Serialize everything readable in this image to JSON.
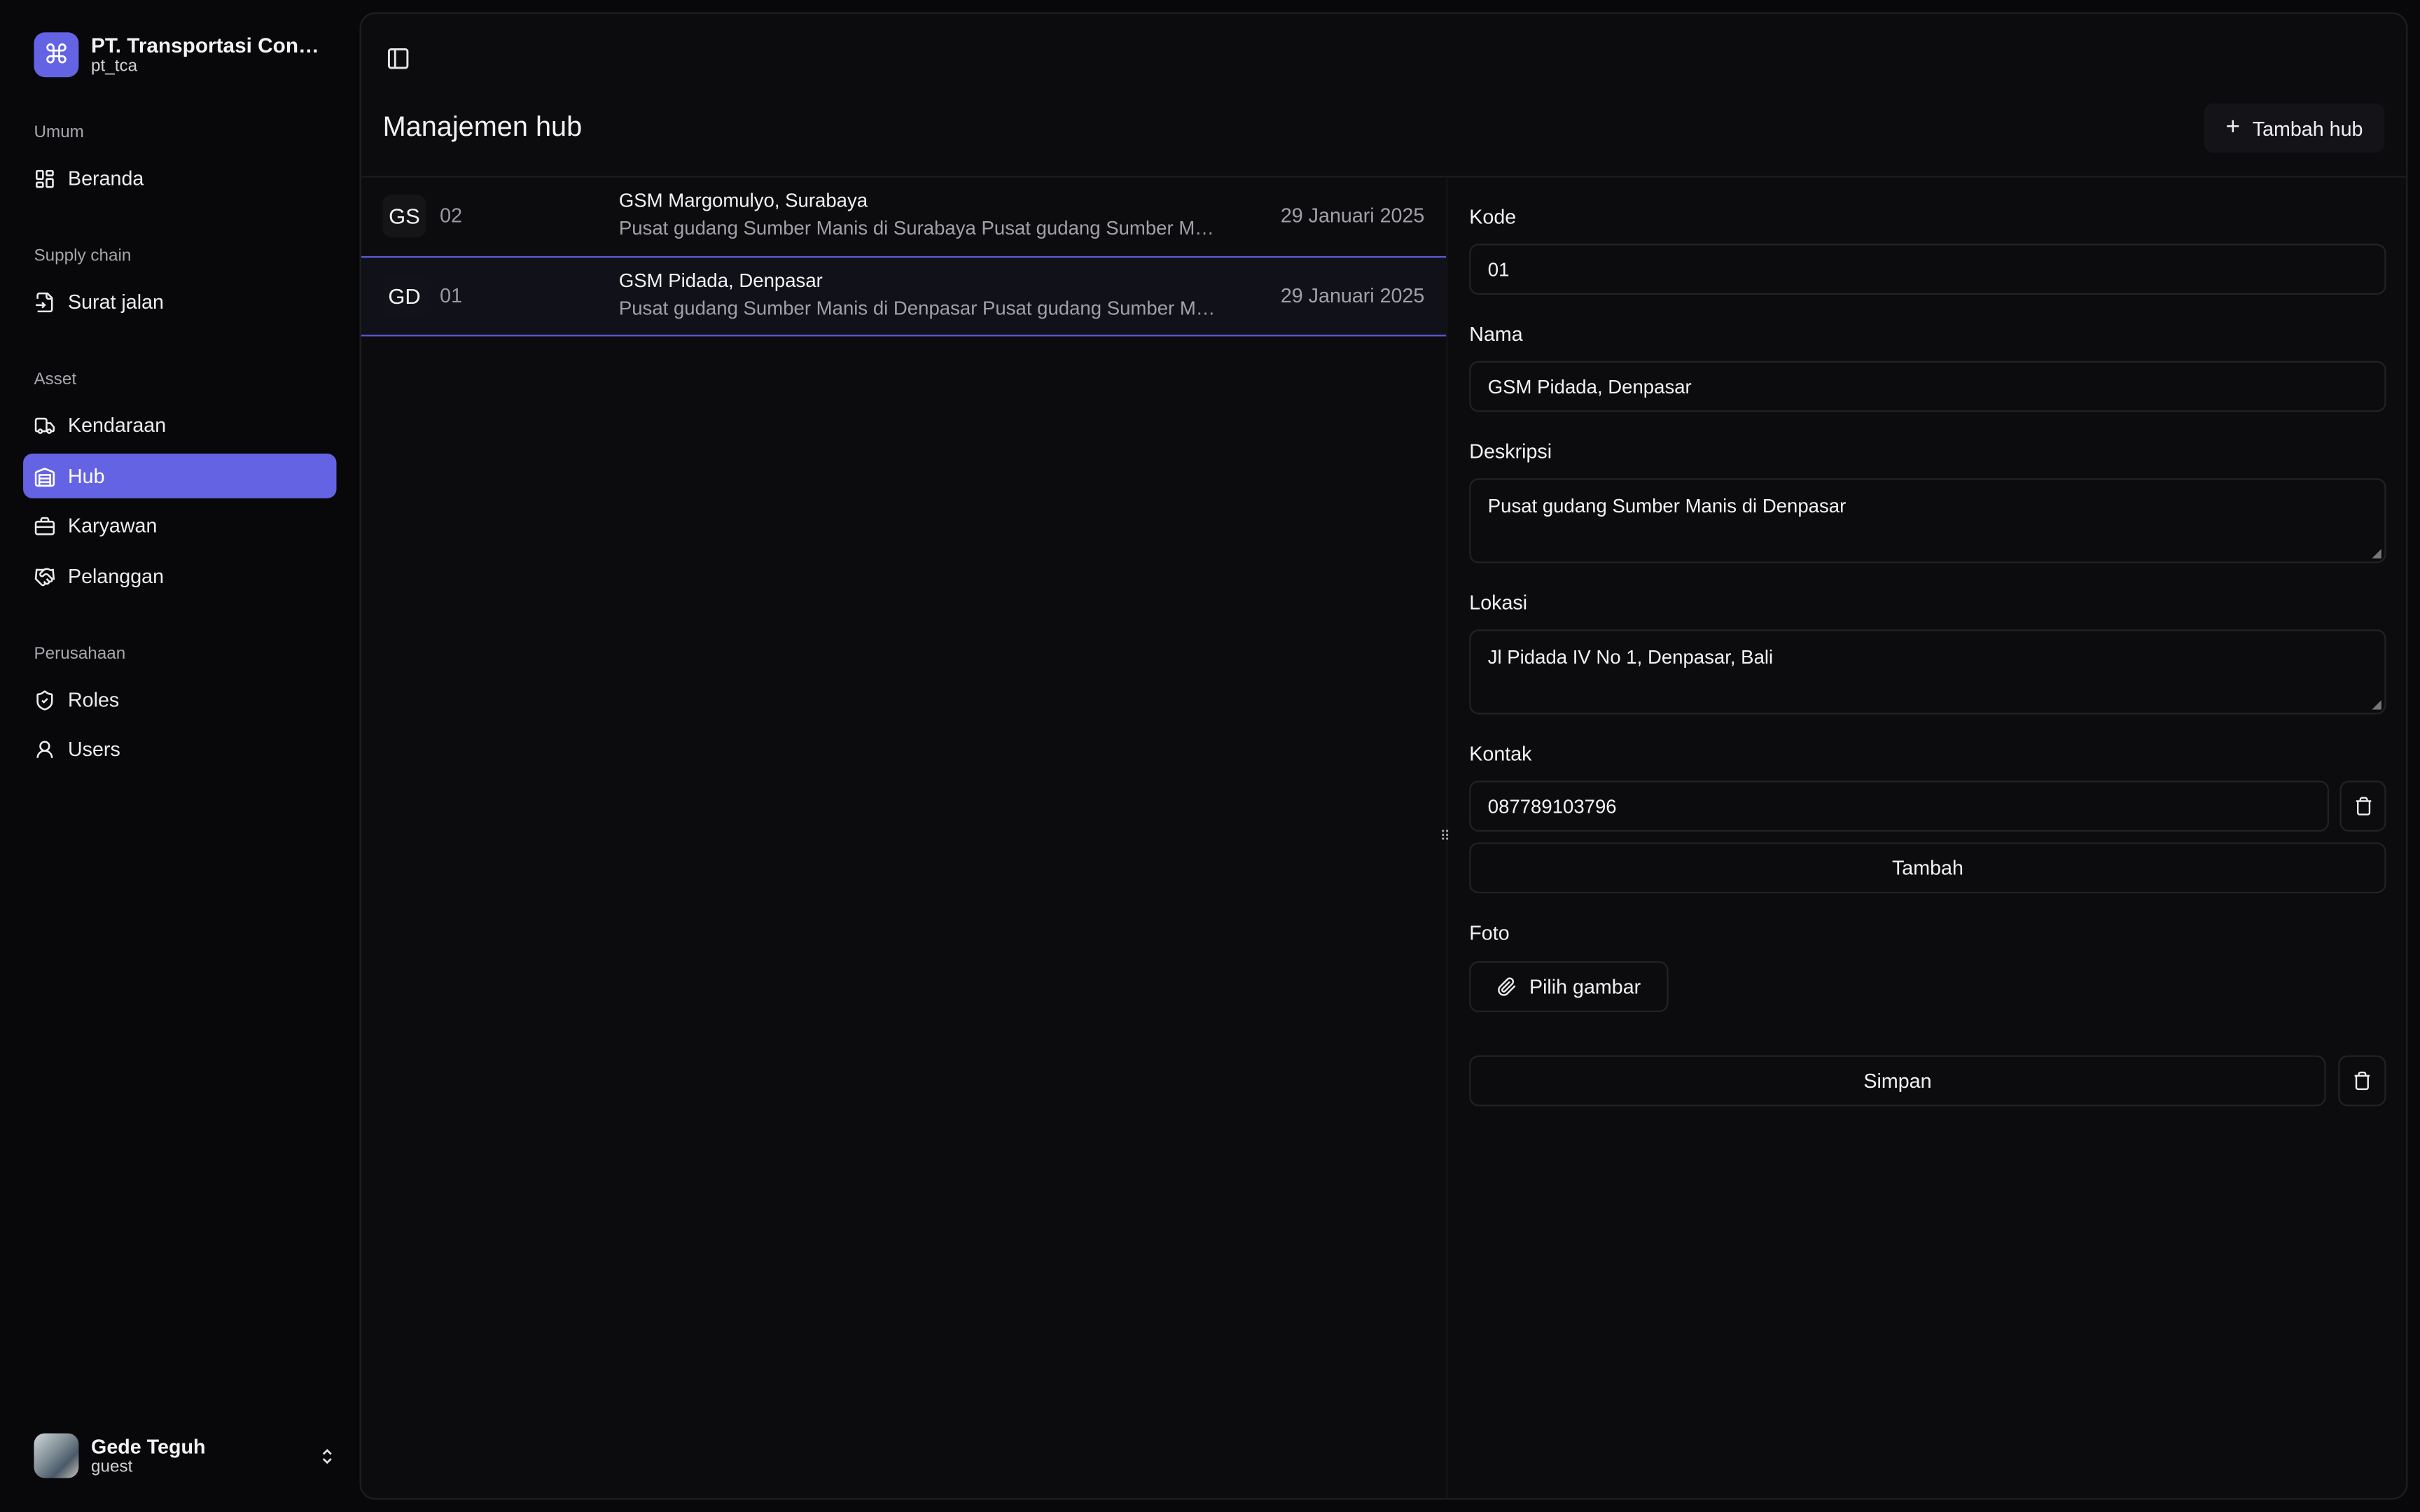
{
  "sidebar": {
    "brand": {
      "name": "PT. Transportasi Contoh Abadi",
      "sub": "pt_tca",
      "icon": "command-icon"
    },
    "groups": [
      {
        "label": "Umum"
      },
      {
        "label": "Supply chain"
      },
      {
        "label": "Asset"
      },
      {
        "label": "Perusahaan"
      }
    ],
    "items": [
      {
        "label": "Beranda",
        "icon": "dashboard-icon"
      },
      {
        "label": "Surat jalan",
        "icon": "file-input-icon"
      },
      {
        "label": "Kendaraan",
        "icon": "truck-icon"
      },
      {
        "label": "Hub",
        "icon": "warehouse-icon",
        "active": true
      },
      {
        "label": "Karyawan",
        "icon": "briefcase-icon"
      },
      {
        "label": "Pelanggan",
        "icon": "handshake-icon"
      },
      {
        "label": "Roles",
        "icon": "shield-icon"
      },
      {
        "label": "Users",
        "icon": "user-icon"
      }
    ],
    "user": {
      "name": "Gede Teguh",
      "role": "guest"
    }
  },
  "header": {
    "title": "Manajemen hub",
    "add_label": "Tambah hub"
  },
  "hubs": [
    {
      "abbr": "GS",
      "code": "02",
      "name": "GSM Margomulyo, Surabaya",
      "desc": "Pusat gudang Sumber Manis di Surabaya Pusat gudang Sumber Manis di Surabaya",
      "date": "29 Januari 2025"
    },
    {
      "abbr": "GD",
      "code": "01",
      "name": "GSM Pidada, Denpasar",
      "desc": "Pusat gudang Sumber Manis di Denpasar Pusat gudang Sumber Manis di Denpasar",
      "date": "29 Januari 2025",
      "selected": true
    }
  ],
  "form": {
    "kode_label": "Kode",
    "kode": "01",
    "nama_label": "Nama",
    "nama": "GSM Pidada, Denpasar",
    "deskripsi_label": "Deskripsi",
    "deskripsi": "Pusat gudang Sumber Manis di Denpasar",
    "lokasi_label": "Lokasi",
    "lokasi": "Jl Pidada IV No 1, Denpasar, Bali",
    "kontak_label": "Kontak",
    "kontak": "087789103796",
    "tambah_label": "Tambah",
    "foto_label": "Foto",
    "pilih_label": "Pilih gambar",
    "simpan_label": "Simpan"
  },
  "colors": {
    "accent": "#6363e3",
    "selected_border": "#5b5bd6"
  }
}
